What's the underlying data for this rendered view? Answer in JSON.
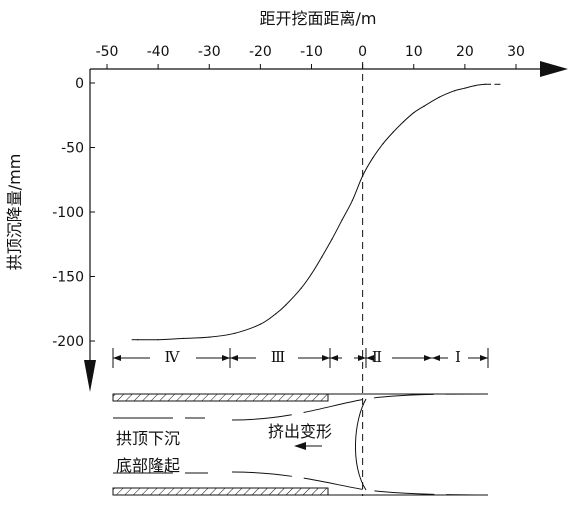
{
  "chart_data": {
    "type": "line",
    "title": "距开挖面距离/m",
    "ylabel": "拱顶沉降量/mm",
    "xlim": [
      -50,
      30
    ],
    "ylim": [
      -200,
      0
    ],
    "x_ticks": [
      "-50",
      "-40",
      "-30",
      "-20",
      "-10",
      "0",
      "10",
      "20",
      "30"
    ],
    "y_ticks": [
      "0",
      "-50",
      "-100",
      "-150",
      "-200"
    ],
    "series": [
      {
        "x": [
          -44,
          -40,
          -35,
          -30,
          -25,
          -20,
          -17,
          -15,
          -12,
          -10,
          -8,
          -6,
          -4,
          -2,
          0,
          2,
          4,
          6,
          8,
          10,
          12,
          15,
          18,
          20,
          22,
          24,
          25
        ],
        "y": [
          -199,
          -199,
          -198,
          -197,
          -194,
          -187,
          -179,
          -172,
          -159,
          -148,
          -135,
          -121,
          -106,
          -91,
          -72,
          -58,
          -47,
          -38,
          -30,
          -23,
          -18,
          -11,
          -6,
          -4,
          -2,
          -1,
          -1
        ]
      }
    ]
  },
  "diagram": {
    "zones": [
      "Ⅳ",
      "Ⅲ",
      "Ⅱ",
      "Ⅰ"
    ],
    "labels": {
      "crown": "拱顶下沉",
      "floor": "底部隆起",
      "extrusion": "挤出变形"
    }
  }
}
